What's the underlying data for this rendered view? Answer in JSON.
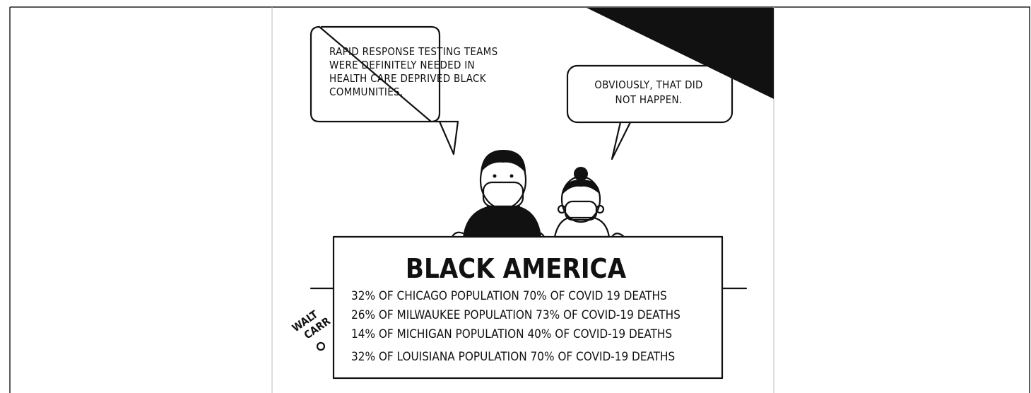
{
  "cartoon": {
    "bubbles": [
      {
        "lines": [
          "RAPID RESPONSE TESTING TEAMS",
          "WERE DEFINITELY NEEDED IN",
          "HEALTH CARE DEPRIVED BLACK",
          "COMMUNITIES."
        ]
      },
      {
        "lines": [
          "OBVIOUSLY, THAT DID",
          "NOT HAPPEN."
        ]
      }
    ],
    "sign": {
      "title": "BLACK AMERICA",
      "lines": [
        "32% OF CHICAGO POPULATION   70% OF COVID 19 DEATHS",
        "26% OF MILWAUKEE POPULATION 73% OF COVID-19 DEATHS",
        "14% OF MICHIGAN POPULATION 40% OF COVID-19 DEATHS",
        "32% OF LOUISIANA POPULATION 70% OF COVID-19 DEATHS"
      ]
    },
    "signature": [
      "WALT",
      "CARR"
    ]
  }
}
